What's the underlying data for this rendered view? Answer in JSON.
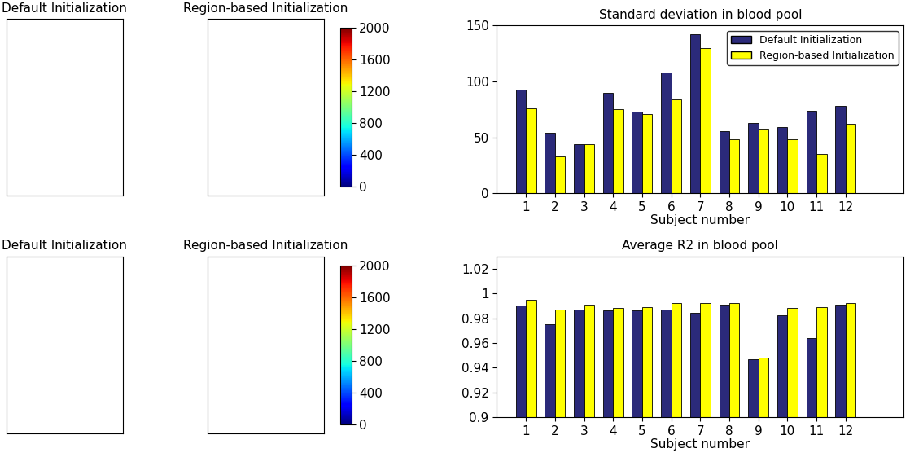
{
  "chart_data": [
    {
      "type": "image",
      "title": "Default Initialization",
      "tick_labels": false
    },
    {
      "type": "image",
      "title": "Region-based Initialization",
      "tick_labels": false,
      "colorbar_range": [
        0,
        2000
      ],
      "colorbar_ticks": [
        0,
        400,
        800,
        1200,
        1600,
        2000
      ]
    },
    {
      "type": "bar",
      "title": "Standard deviation in blood pool",
      "x_label": "Subject number",
      "x": [
        1,
        2,
        3,
        4,
        5,
        6,
        7,
        8,
        9,
        10,
        11,
        12
      ],
      "xlim": [
        0,
        14
      ],
      "xticks": [
        1,
        2,
        3,
        4,
        5,
        6,
        7,
        8,
        9,
        10,
        11,
        12
      ],
      "ylim": [
        0,
        150
      ],
      "yticks": [
        0,
        50,
        100,
        150
      ],
      "legend": "upper right",
      "series": [
        {
          "name": "Default Initialization",
          "color": "#2b2a7a",
          "values": [
            93,
            54,
            44,
            90,
            73,
            108,
            142,
            56,
            63,
            59,
            74,
            78
          ]
        },
        {
          "name": "Region-based Initialization",
          "color": "#ffff00",
          "values": [
            76,
            33,
            44,
            75,
            71,
            84,
            130,
            48,
            58,
            48,
            35,
            62
          ]
        }
      ]
    },
    {
      "type": "image",
      "title": "Default Initialization",
      "tick_labels": false
    },
    {
      "type": "image",
      "title": "Region-based Initialization",
      "tick_labels": false,
      "colorbar_range": [
        0,
        2000
      ],
      "colorbar_ticks": [
        0,
        400,
        800,
        1200,
        1600,
        2000
      ]
    },
    {
      "type": "bar",
      "title": "Average R2 in blood pool",
      "x_label": "Subject number",
      "x": [
        1,
        2,
        3,
        4,
        5,
        6,
        7,
        8,
        9,
        10,
        11,
        12
      ],
      "xlim": [
        0,
        14
      ],
      "xticks": [
        1,
        2,
        3,
        4,
        5,
        6,
        7,
        8,
        9,
        10,
        11,
        12
      ],
      "ylim": [
        0.9,
        1.03
      ],
      "yticks": [
        0.9,
        0.92,
        0.94,
        0.96,
        0.98,
        1,
        1.02
      ],
      "series": [
        {
          "color": "#2b2a7a",
          "values": [
            0.99,
            0.975,
            0.987,
            0.986,
            0.986,
            0.987,
            0.984,
            0.991,
            0.947,
            0.982,
            0.964,
            0.991
          ]
        },
        {
          "color": "#ffff00",
          "values": [
            0.995,
            0.987,
            0.991,
            0.988,
            0.989,
            0.992,
            0.992,
            0.992,
            0.948,
            0.988,
            0.989,
            0.992
          ]
        }
      ]
    }
  ]
}
